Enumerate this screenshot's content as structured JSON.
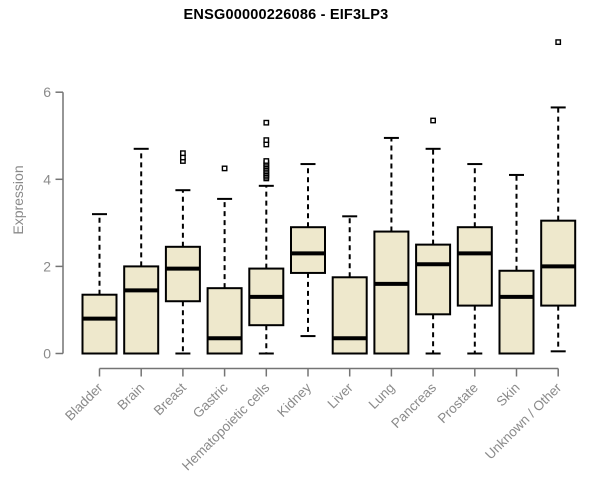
{
  "chart_data": {
    "type": "box",
    "title": "ENSG00000226086 - EIF3LP3",
    "ylabel": "Expression",
    "xlabel": "",
    "ylim": [
      0,
      6
    ],
    "yticks": [
      0,
      2,
      4,
      6
    ],
    "grid": false,
    "legend": "none",
    "box_fill": "#EEE8CC",
    "box_stroke": "#000000",
    "axis_color": "#747474",
    "label_color": "#8A8A8A",
    "title_color": "#000000",
    "categories": [
      "Bladder",
      "Brain",
      "Breast",
      "Gastric",
      "Hematopoietic cells",
      "Kidney",
      "Liver",
      "Lung",
      "Pancreas",
      "Prostate",
      "Skin",
      "Unknown / Other"
    ],
    "series": [
      {
        "category": "Bladder",
        "whisker_low": 0,
        "q1": 0,
        "median": 0.8,
        "q3": 1.35,
        "whisker_high": 3.2,
        "outliers": []
      },
      {
        "category": "Brain",
        "whisker_low": 0,
        "q1": 0,
        "median": 1.45,
        "q3": 2.0,
        "whisker_high": 4.7,
        "outliers": []
      },
      {
        "category": "Breast",
        "whisker_low": 0,
        "q1": 1.2,
        "median": 1.95,
        "q3": 2.45,
        "whisker_high": 3.75,
        "outliers": [
          4.42,
          4.5,
          4.6
        ]
      },
      {
        "category": "Gastric",
        "whisker_low": 0,
        "q1": 0,
        "median": 0.35,
        "q3": 1.5,
        "whisker_high": 3.55,
        "outliers": [
          4.25
        ]
      },
      {
        "category": "Hematopoietic cells",
        "whisker_low": 0,
        "q1": 0.65,
        "median": 1.3,
        "q3": 1.95,
        "whisker_high": 3.85,
        "outliers": [
          4.02,
          4.06,
          4.1,
          4.14,
          4.18,
          4.22,
          4.26,
          4.3,
          4.34,
          4.38,
          4.42,
          4.8,
          4.9,
          5.3
        ]
      },
      {
        "category": "Kidney",
        "whisker_low": 0.4,
        "q1": 1.85,
        "median": 2.3,
        "q3": 2.9,
        "whisker_high": 4.35,
        "outliers": []
      },
      {
        "category": "Liver",
        "whisker_low": 0,
        "q1": 0,
        "median": 0.35,
        "q3": 1.75,
        "whisker_high": 3.15,
        "outliers": []
      },
      {
        "category": "Lung",
        "whisker_low": 0,
        "q1": 0,
        "median": 1.6,
        "q3": 2.8,
        "whisker_high": 4.95,
        "outliers": []
      },
      {
        "category": "Pancreas",
        "whisker_low": 0,
        "q1": 0.9,
        "median": 2.05,
        "q3": 2.5,
        "whisker_high": 4.7,
        "outliers": [
          5.35
        ]
      },
      {
        "category": "Prostate",
        "whisker_low": 0,
        "q1": 1.1,
        "median": 2.3,
        "q3": 2.9,
        "whisker_high": 4.35,
        "outliers": []
      },
      {
        "category": "Skin",
        "whisker_low": 0,
        "q1": 0,
        "median": 1.3,
        "q3": 1.9,
        "whisker_high": 4.1,
        "outliers": []
      },
      {
        "category": "Unknown / Other",
        "whisker_low": 0.05,
        "q1": 1.1,
        "median": 2.0,
        "q3": 3.05,
        "whisker_high": 5.65,
        "outliers": [
          7.15
        ]
      }
    ]
  }
}
